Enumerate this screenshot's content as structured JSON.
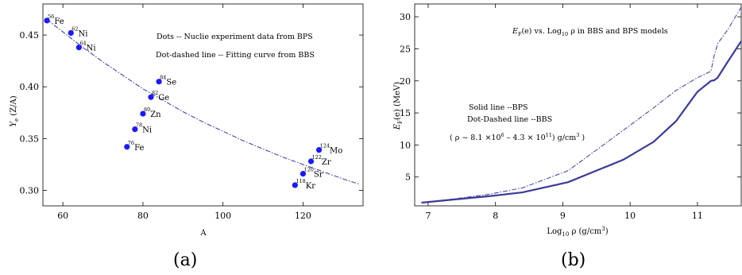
{
  "chart_data": [
    {
      "type": "scatter",
      "caption": "(a)",
      "xlabel": "A",
      "ylabel": "Y",
      "ylabel_sub": "e",
      "ylabel_tail": " (Z/A)",
      "xlim": [
        55,
        135
      ],
      "ylim": [
        0.285,
        0.48
      ],
      "xticks": [
        60,
        80,
        100,
        120
      ],
      "yticks": [
        0.3,
        0.35,
        0.4,
        0.45
      ],
      "yticks_fmt": [
        "0.30",
        "0.35",
        "0.40",
        "0.45"
      ],
      "annotations": [
        "Dots -- Nuclie experiment data from BPS",
        "Dot-dashed line -- Fitting curve from BBS"
      ],
      "series": [
        {
          "style": "dots",
          "points": [
            {
              "mass": "56",
              "el": "Fe",
              "x": 56,
              "y": 0.464
            },
            {
              "mass": "62",
              "el": "Ni",
              "x": 62,
              "y": 0.452
            },
            {
              "mass": "64",
              "el": "Ni",
              "x": 64,
              "y": 0.438
            },
            {
              "mass": "84",
              "el": "Se",
              "x": 84,
              "y": 0.405
            },
            {
              "mass": "82",
              "el": "Ge",
              "x": 82,
              "y": 0.39
            },
            {
              "mass": "80",
              "el": "Zn",
              "x": 80,
              "y": 0.374
            },
            {
              "mass": "78",
              "el": "Ni",
              "x": 78,
              "y": 0.359
            },
            {
              "mass": "76",
              "el": "Fe",
              "x": 76,
              "y": 0.342
            },
            {
              "mass": "124",
              "el": "Mo",
              "x": 124,
              "y": 0.339
            },
            {
              "mass": "122",
              "el": "Zr",
              "x": 122,
              "y": 0.328
            },
            {
              "mass": "120",
              "el": "Sr",
              "x": 120,
              "y": 0.316
            },
            {
              "mass": "118",
              "el": "Kr",
              "x": 118,
              "y": 0.305
            }
          ]
        },
        {
          "style": "dot-dashed",
          "x": [
            56,
            60,
            65,
            70,
            75,
            80,
            85,
            90,
            95,
            100,
            105,
            110,
            115,
            120,
            125,
            130,
            134
          ],
          "y": [
            0.465,
            0.453,
            0.438,
            0.424,
            0.411,
            0.398,
            0.387,
            0.376,
            0.366,
            0.357,
            0.348,
            0.34,
            0.332,
            0.325,
            0.318,
            0.311,
            0.306
          ]
        }
      ]
    },
    {
      "type": "line",
      "caption": "(b)",
      "xlabel": "Log",
      "xlabel_sub": "10",
      "xlabel_tail": " ρ (g/cm",
      "xlabel_sup": "3",
      "xlabel_end": ")",
      "ylabel": "E",
      "ylabel_sub": "F",
      "ylabel_tail": "(e) (MeV)",
      "title_parts": {
        "a": "E",
        "a_sub": "F",
        "b": "(e)  vs. Log",
        "b_sub": "10",
        "c": " ρ in BBS and BPS models"
      },
      "xlim": [
        6.8,
        11.65
      ],
      "ylim": [
        0.5,
        32
      ],
      "xticks": [
        7,
        8,
        9,
        10,
        11
      ],
      "yticks": [
        5,
        10,
        15,
        20,
        25,
        30
      ],
      "legend": [
        "Solid line --BPS",
        "Dot-Dashed line --BBS"
      ],
      "range_note": {
        "pre": "( ρ ~ 8.1 ×10",
        "e1": "6",
        "mid": " – 4.3 × 10",
        "e2": "11",
        "post": ") g/cm",
        "e3": "3",
        "end": " )"
      },
      "series": [
        {
          "style": "solid",
          "x": [
            6.9,
            7.4,
            7.9,
            8.4,
            9.08,
            9.9,
            10.35,
            10.68,
            11.0,
            11.2,
            11.25,
            11.3,
            11.45,
            11.65
          ],
          "y": [
            1.0,
            1.5,
            2.0,
            2.6,
            4.2,
            7.7,
            10.5,
            13.7,
            18.3,
            20.0,
            20.1,
            20.5,
            23.0,
            26.2
          ]
        },
        {
          "style": "dot-dashed",
          "x": [
            6.9,
            7.4,
            7.9,
            8.4,
            9.08,
            9.9,
            10.35,
            10.68,
            11.0,
            11.2,
            11.25,
            11.3,
            11.45,
            11.65
          ],
          "y": [
            1.0,
            1.6,
            2.3,
            3.3,
            6.0,
            12.3,
            15.8,
            18.5,
            20.5,
            21.5,
            24.0,
            25.8,
            28.0,
            31.5
          ]
        }
      ]
    }
  ]
}
